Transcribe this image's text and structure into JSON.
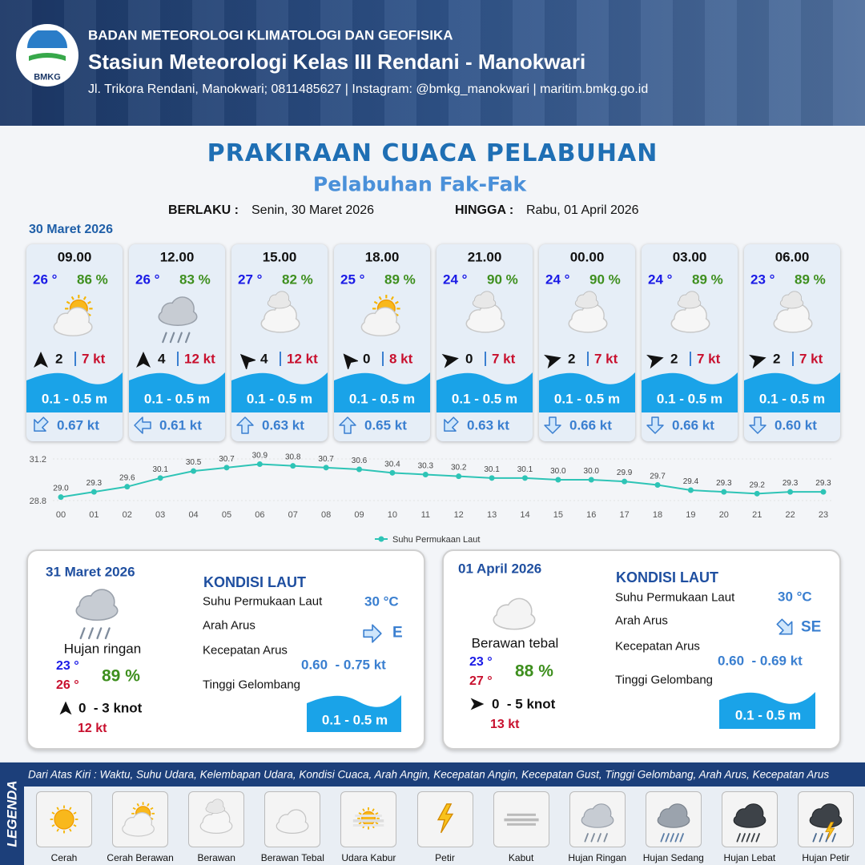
{
  "header": {
    "logo_text": "BMKG",
    "agency": "BADAN METEOROLOGI KLIMATOLOGI DAN GEOFISIKA",
    "station": "Stasiun Meteorologi Kelas III Rendani - Manokwari",
    "contact": "Jl. Trikora Rendani, Manokwari; 0811485627 | Instagram: @bmkg_manokwari | maritim.bmkg.go.id"
  },
  "title": {
    "main": "PRAKIRAAN CUACA PELABUHAN",
    "port": "Pelabuhan Fak-Fak"
  },
  "validity": {
    "from_label": "BERLAKU :",
    "from": "Senin, 30 Maret 2026",
    "to_label": "HINGGA :",
    "to": "Rabu, 01 April 2026"
  },
  "forecast": {
    "date": "30 Maret 2026",
    "slots": [
      {
        "time": "09.00",
        "temp": "26 °",
        "humidity": "86 %",
        "wind_speed": 2,
        "gust": "7 kt",
        "wave": "0.1 - 0.5 m",
        "current": "0.67 kt"
      },
      {
        "time": "12.00",
        "temp": "26 °",
        "humidity": "83 %",
        "wind_speed": 4,
        "gust": "12 kt",
        "wave": "0.1 - 0.5 m",
        "current": "0.61 kt"
      },
      {
        "time": "15.00",
        "temp": "27 °",
        "humidity": "82 %",
        "wind_speed": 4,
        "gust": "12 kt",
        "wave": "0.1 - 0.5 m",
        "current": "0.63 kt"
      },
      {
        "time": "18.00",
        "temp": "25 °",
        "humidity": "89 %",
        "wind_speed": 0,
        "gust": "8 kt",
        "wave": "0.1 - 0.5 m",
        "current": "0.65 kt"
      },
      {
        "time": "21.00",
        "temp": "24 °",
        "humidity": "90 %",
        "wind_speed": 0,
        "gust": "7 kt",
        "wave": "0.1 - 0.5 m",
        "current": "0.63 kt"
      },
      {
        "time": "00.00",
        "temp": "24 °",
        "humidity": "90 %",
        "wind_speed": 2,
        "gust": "7 kt",
        "wave": "0.1 - 0.5 m",
        "current": "0.66 kt"
      },
      {
        "time": "03.00",
        "temp": "24 °",
        "humidity": "89 %",
        "wind_speed": 2,
        "gust": "7 kt",
        "wave": "0.1 - 0.5 m",
        "current": "0.66 kt"
      },
      {
        "time": "06.00",
        "temp": "23 °",
        "humidity": "89 %",
        "wind_speed": 2,
        "gust": "7 kt",
        "wave": "0.1 - 0.5 m",
        "current": "0.60 kt"
      }
    ]
  },
  "chart_data": {
    "type": "line",
    "categories": [
      "00",
      "01",
      "02",
      "03",
      "04",
      "05",
      "06",
      "07",
      "08",
      "09",
      "10",
      "11",
      "12",
      "13",
      "14",
      "15",
      "16",
      "17",
      "18",
      "19",
      "20",
      "21",
      "22",
      "23"
    ],
    "series": [
      {
        "name": "Suhu Permukaan Laut",
        "color": "#2ec4b6",
        "values": [
          29.0,
          29.3,
          29.6,
          30.1,
          30.5,
          30.7,
          30.9,
          30.8,
          30.7,
          30.6,
          30.4,
          30.3,
          30.2,
          30.1,
          30.1,
          30.0,
          30.0,
          29.9,
          29.7,
          29.4,
          29.3,
          29.2,
          29.3,
          29.3
        ],
        "value_labels": [
          "29.0",
          "29.3",
          "29.6",
          "30.1",
          "30.5",
          "30.7",
          "30.9",
          "30.8",
          "30.7",
          "30.6",
          "30.4",
          "30.3",
          "30.2",
          "30.1",
          "30.1",
          "30.0",
          "30.0",
          "29.9",
          "29.7",
          "29.4",
          "29.3",
          "29.2",
          "29.3",
          "29.3"
        ]
      }
    ],
    "ylim": [
      28.8,
      31.2
    ],
    "yticks": [
      28.8,
      31.2
    ]
  },
  "days": [
    {
      "date": "31 Maret 2026",
      "condition": "Hujan ringan",
      "temp_min": "23 °",
      "temp_max": "26 °",
      "humidity": "89 %",
      "wind": "0  - 3 knot",
      "gust": "12 kt",
      "sea_heading": "KONDISI LAUT",
      "sst_label": "Suhu Permukaan Laut",
      "sst": "30 °C",
      "dir_label": "Arah Arus",
      "dir": "E",
      "speed_label": "Kecepatan Arus",
      "speed": "0.60  - 0.75 kt",
      "wave_label": "Tinggi Gelombang",
      "wave": "0.1 - 0.5 m"
    },
    {
      "date": "01 April 2026",
      "condition": "Berawan tebal",
      "temp_min": "23 °",
      "temp_max": "27 °",
      "humidity": "88 %",
      "wind": "0  - 5 knot",
      "gust": "13 kt",
      "sea_heading": "KONDISI LAUT",
      "sst_label": "Suhu Permukaan Laut",
      "sst": "30 °C",
      "dir_label": "Arah Arus",
      "dir": "SE",
      "speed_label": "Kecepatan Arus",
      "speed": "0.60  - 0.69 kt",
      "wave_label": "Tinggi Gelombang",
      "wave": "0.1 - 0.5 m"
    }
  ],
  "legend": {
    "title": "LEGENDA",
    "description": "Dari Atas Kiri : Waktu, Suhu Udara, Kelembapan Udara, Kondisi Cuaca, Arah Angin, Kecepatan Angin, Kecepatan Gust, Tinggi Gelombang, Arah Arus, Kecepatan Arus",
    "items": [
      "Cerah",
      "Cerah Berawan",
      "Berawan",
      "Berawan Tebal",
      "Udara Kabur",
      "Petir",
      "Kabut",
      "Hujan Ringan",
      "Hujan Sedang",
      "Hujan Lebat",
      "Hujan Petir"
    ]
  }
}
